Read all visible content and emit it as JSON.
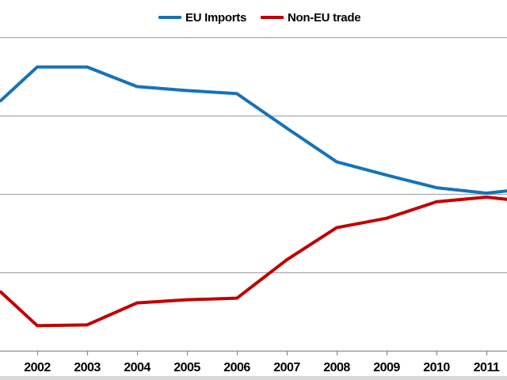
{
  "colors": {
    "eu_imports": "#1772B8",
    "non_eu_trade": "#C00000",
    "gridline": "#A9A9A9",
    "axis": "#8C8C8C",
    "tick_label": "#000000",
    "bottom_strip": "#D9D9D9",
    "background": "#FFFFFF"
  },
  "chart_data": {
    "type": "line",
    "title": "",
    "xlabel": "",
    "ylabel": "",
    "y_axis_labels_visible": false,
    "legend_position": "top-center",
    "grid": "horizontal",
    "ylim": [
      0,
      4.2
    ],
    "gridline_values": [
      1,
      2,
      3,
      4
    ],
    "x_tick_years": [
      2002,
      2003,
      2004,
      2005,
      2006,
      2007,
      2008,
      2009,
      2010,
      2011
    ],
    "x_tick_labels": [
      "2002",
      "2003",
      "2004",
      "2005",
      "2006",
      "2007",
      "2008",
      "2009",
      "2010",
      "2011"
    ],
    "x_years": [
      2001.25,
      2002,
      2003,
      2004,
      2005,
      2006,
      2007,
      2008,
      2009,
      2010,
      2011,
      2011.43
    ],
    "series": [
      {
        "name": "EU Imports",
        "color": "#1772B8",
        "values": [
          3.18,
          3.62,
          3.62,
          3.37,
          3.32,
          3.28,
          2.84,
          2.41,
          2.24,
          2.08,
          2.01,
          2.04
        ]
      },
      {
        "name": "Non-EU trade",
        "color": "#C00000",
        "values": [
          0.76,
          0.32,
          0.33,
          0.61,
          0.65,
          0.67,
          1.16,
          1.57,
          1.69,
          1.9,
          1.96,
          1.93
        ]
      }
    ],
    "units": "relative gridline units (y-axis value labels cropped out of view)"
  }
}
